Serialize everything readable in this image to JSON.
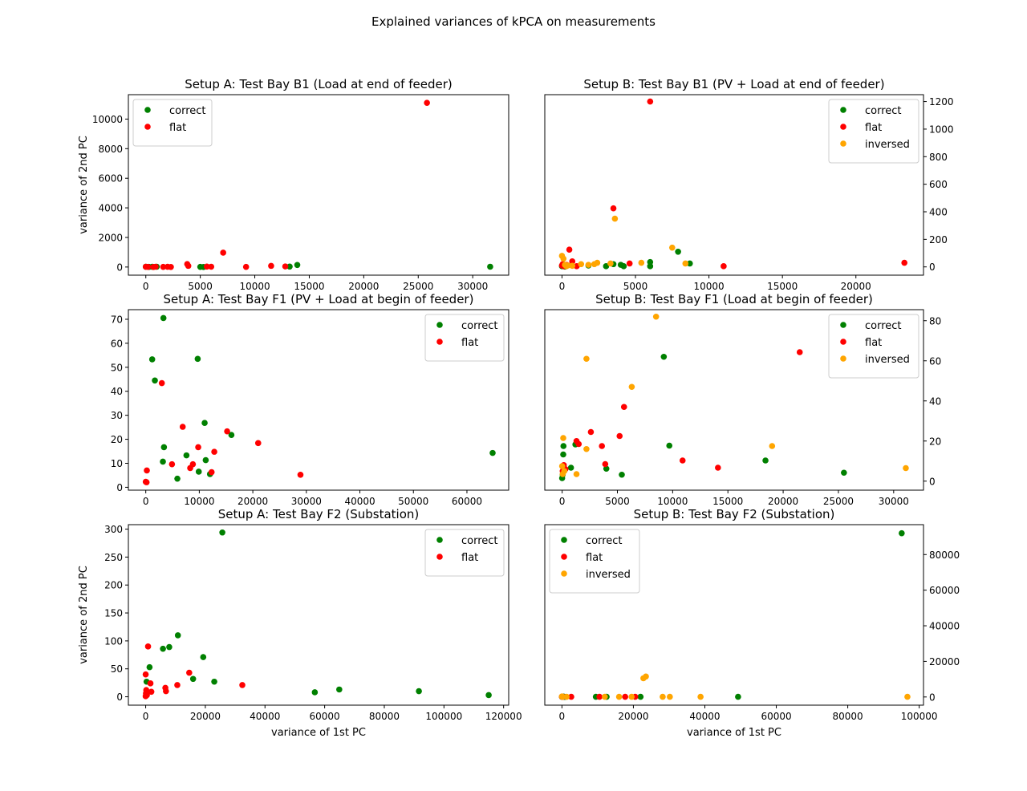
{
  "figure": {
    "title": "Explained variances of kPCA on measurements"
  },
  "colors": {
    "correct": "#008000",
    "flat": "#ff0000",
    "inversed": "#ffa500"
  },
  "chart_data": [
    {
      "type": "scatter",
      "title": "Setup A: Test Bay B1 (Load at end of feeder)",
      "xlabel": "",
      "ylabel": "variance of 2nd PC",
      "xlim": [
        -1600,
        33300
      ],
      "ylim": [
        -550,
        11650
      ],
      "xticks": [
        0,
        5000,
        10000,
        15000,
        20000,
        25000,
        30000
      ],
      "yticks": [
        0,
        2000,
        4000,
        6000,
        8000,
        10000
      ],
      "yaxis_side": "left",
      "legend": "upper-left",
      "grid": false,
      "series": [
        {
          "name": "correct",
          "points": [
            [
              0,
              20
            ],
            [
              300,
              10
            ],
            [
              600,
              15
            ],
            [
              1000,
              20
            ],
            [
              5000,
              10
            ],
            [
              5300,
              5
            ],
            [
              13200,
              30
            ],
            [
              13900,
              140
            ],
            [
              31600,
              20
            ]
          ]
        },
        {
          "name": "flat",
          "points": [
            [
              0,
              15
            ],
            [
              200,
              10
            ],
            [
              700,
              5
            ],
            [
              900,
              20
            ],
            [
              1600,
              10
            ],
            [
              2000,
              15
            ],
            [
              2300,
              5
            ],
            [
              3800,
              200
            ],
            [
              3900,
              80
            ],
            [
              5600,
              30
            ],
            [
              6000,
              20
            ],
            [
              7100,
              970
            ],
            [
              9200,
              10
            ],
            [
              11500,
              80
            ],
            [
              12800,
              40
            ],
            [
              25800,
              11100
            ]
          ]
        }
      ]
    },
    {
      "type": "scatter",
      "title": "Setup B: Test Bay B1 (PV + Load at end of feeder)",
      "xlabel": "",
      "ylabel": "",
      "xlim": [
        -1170,
        24600
      ],
      "ylim": [
        -60,
        1250
      ],
      "xticks": [
        0,
        5000,
        10000,
        15000,
        20000
      ],
      "yticks": [
        0,
        200,
        400,
        600,
        800,
        1000,
        1200
      ],
      "yaxis_side": "right",
      "legend": "upper-right",
      "grid": false,
      "series": [
        {
          "name": "correct",
          "points": [
            [
              0,
              5
            ],
            [
              100,
              10
            ],
            [
              200,
              2
            ],
            [
              300,
              8
            ],
            [
              1800,
              10
            ],
            [
              3000,
              5
            ],
            [
              3500,
              20
            ],
            [
              4000,
              15
            ],
            [
              4200,
              5
            ],
            [
              6000,
              35
            ],
            [
              6000,
              5
            ],
            [
              7900,
              110
            ],
            [
              8700,
              25
            ]
          ]
        },
        {
          "name": "flat",
          "points": [
            [
              0,
              10
            ],
            [
              50,
              20
            ],
            [
              150,
              5
            ],
            [
              300,
              15
            ],
            [
              500,
              125
            ],
            [
              700,
              40
            ],
            [
              1000,
              5
            ],
            [
              3500,
              425
            ],
            [
              4600,
              25
            ],
            [
              6000,
              1200
            ],
            [
              11000,
              5
            ],
            [
              23300,
              30
            ]
          ]
        },
        {
          "name": "inversed",
          "points": [
            [
              0,
              80
            ],
            [
              100,
              60
            ],
            [
              200,
              15
            ],
            [
              300,
              5
            ],
            [
              400,
              10
            ],
            [
              700,
              8
            ],
            [
              1300,
              20
            ],
            [
              1800,
              15
            ],
            [
              2200,
              20
            ],
            [
              2400,
              30
            ],
            [
              3300,
              25
            ],
            [
              3600,
              350
            ],
            [
              5400,
              30
            ],
            [
              7500,
              140
            ],
            [
              8400,
              25
            ]
          ]
        }
      ]
    },
    {
      "type": "scatter",
      "title": "Setup A: Test Bay F1 (PV + Load at begin of feeder)",
      "xlabel": "",
      "ylabel": "",
      "xlim": [
        -3250,
        67800
      ],
      "ylim": [
        -1.2,
        74
      ],
      "xticks": [
        0,
        10000,
        20000,
        30000,
        40000,
        50000,
        60000
      ],
      "yticks": [
        0,
        10,
        20,
        30,
        40,
        50,
        60,
        70
      ],
      "yaxis_side": "left",
      "legend": "upper-right",
      "grid": false,
      "series": [
        {
          "name": "correct",
          "points": [
            [
              3300,
              70.5
            ],
            [
              1200,
              53.3
            ],
            [
              1700,
              44.5
            ],
            [
              9700,
              53.5
            ],
            [
              3400,
              16.7
            ],
            [
              3200,
              10.7
            ],
            [
              7600,
              13.3
            ],
            [
              5900,
              3.6
            ],
            [
              9900,
              6.5
            ],
            [
              11000,
              26.8
            ],
            [
              11200,
              11.3
            ],
            [
              16000,
              21.8
            ],
            [
              12000,
              5.5
            ],
            [
              64800,
              14.3
            ]
          ]
        },
        {
          "name": "flat",
          "points": [
            [
              0,
              2.3
            ],
            [
              150,
              2.1
            ],
            [
              200,
              7
            ],
            [
              3000,
              43.4
            ],
            [
              4900,
              9.6
            ],
            [
              6900,
              25.2
            ],
            [
              8300,
              8
            ],
            [
              8800,
              9.6
            ],
            [
              9800,
              16.7
            ],
            [
              12300,
              6.3
            ],
            [
              12800,
              14.8
            ],
            [
              15200,
              23.3
            ],
            [
              21000,
              18.4
            ],
            [
              28900,
              5.2
            ]
          ]
        }
      ]
    },
    {
      "type": "scatter",
      "title": "Setup B: Test Bay F1 (Load at begin of feeder)",
      "xlabel": "",
      "ylabel": "",
      "xlim": [
        -1570,
        32700
      ],
      "ylim": [
        -4.5,
        85.5
      ],
      "xticks": [
        0,
        5000,
        10000,
        15000,
        20000,
        25000,
        30000
      ],
      "yticks": [
        0,
        20,
        40,
        60,
        80
      ],
      "yaxis_side": "right",
      "legend": "upper-right",
      "grid": false,
      "series": [
        {
          "name": "correct",
          "points": [
            [
              0,
              1.5
            ],
            [
              50,
              3.2
            ],
            [
              80,
              4.5
            ],
            [
              100,
              13.3
            ],
            [
              120,
              17.5
            ],
            [
              800,
              6.7
            ],
            [
              1200,
              18.3
            ],
            [
              4000,
              6.2
            ],
            [
              5400,
              3.2
            ],
            [
              9200,
              62
            ],
            [
              9700,
              17.7
            ],
            [
              18400,
              10.3
            ],
            [
              25500,
              4.2
            ]
          ]
        },
        {
          "name": "flat",
          "points": [
            [
              50,
              5
            ],
            [
              150,
              8
            ],
            [
              300,
              6
            ],
            [
              1300,
              20
            ],
            [
              1500,
              18.5
            ],
            [
              2600,
              24.5
            ],
            [
              3600,
              17.5
            ],
            [
              3900,
              8.5
            ],
            [
              5200,
              22.5
            ],
            [
              5600,
              37
            ],
            [
              10900,
              10.3
            ],
            [
              14100,
              6.7
            ],
            [
              21500,
              64.3
            ]
          ]
        },
        {
          "name": "inversed",
          "points": [
            [
              0,
              7.5
            ],
            [
              50,
              3.5
            ],
            [
              100,
              21.5
            ],
            [
              200,
              5
            ],
            [
              1300,
              3.5
            ],
            [
              2200,
              16
            ],
            [
              2200,
              61
            ],
            [
              6300,
              47
            ],
            [
              8500,
              82
            ],
            [
              19000,
              17.5
            ],
            [
              31100,
              6.5
            ]
          ]
        }
      ]
    },
    {
      "type": "scatter",
      "title": "Setup A: Test Bay F2 (Substation)",
      "xlabel": "variance of 1st PC",
      "ylabel": "variance of 2nd PC",
      "xlim": [
        -5800,
        121700
      ],
      "ylim": [
        -15,
        308
      ],
      "xticks": [
        0,
        20000,
        40000,
        60000,
        80000,
        100000,
        120000
      ],
      "yticks": [
        0,
        50,
        100,
        150,
        200,
        250,
        300
      ],
      "yaxis_side": "left",
      "legend": "upper-right",
      "grid": false,
      "series": [
        {
          "name": "correct",
          "points": [
            [
              25700,
              294
            ],
            [
              10800,
              110
            ],
            [
              7900,
              89
            ],
            [
              5800,
              86
            ],
            [
              19300,
              71
            ],
            [
              1300,
              53
            ],
            [
              15900,
              32
            ],
            [
              23000,
              27
            ],
            [
              300,
              27
            ],
            [
              56700,
              8
            ],
            [
              64900,
              13
            ],
            [
              91600,
              10
            ],
            [
              115000,
              3
            ]
          ]
        },
        {
          "name": "flat",
          "points": [
            [
              800,
              90
            ],
            [
              0,
              40
            ],
            [
              1600,
              24
            ],
            [
              14600,
              43
            ],
            [
              32400,
              21
            ],
            [
              10600,
              21
            ],
            [
              6600,
              16
            ],
            [
              6800,
              10
            ],
            [
              1900,
              9
            ],
            [
              200,
              12
            ],
            [
              100,
              6
            ],
            [
              0,
              1
            ],
            [
              400,
              3
            ]
          ]
        }
      ]
    },
    {
      "type": "scatter",
      "title": "Setup B: Test Bay F2 (Substation)",
      "xlabel": "variance of 1st PC",
      "ylabel": "",
      "xlim": [
        -4800,
        101200
      ],
      "ylim": [
        -4600,
        96800
      ],
      "xticks": [
        0,
        20000,
        40000,
        60000,
        80000,
        100000
      ],
      "yticks": [
        0,
        20000,
        40000,
        60000,
        80000
      ],
      "yaxis_side": "right",
      "legend": "upper-left",
      "grid": false,
      "series": [
        {
          "name": "correct",
          "points": [
            [
              0,
              100
            ],
            [
              400,
              200
            ],
            [
              800,
              50
            ],
            [
              9500,
              100
            ],
            [
              12500,
              100
            ],
            [
              22000,
              100
            ],
            [
              49300,
              100
            ],
            [
              95100,
              92000
            ]
          ]
        },
        {
          "name": "flat",
          "points": [
            [
              0,
              150
            ],
            [
              300,
              100
            ],
            [
              2600,
              100
            ],
            [
              10500,
              100
            ],
            [
              17700,
              100
            ],
            [
              20500,
              100
            ]
          ]
        },
        {
          "name": "inversed",
          "points": [
            [
              0,
              300
            ],
            [
              200,
              100
            ],
            [
              1300,
              100
            ],
            [
              12000,
              100
            ],
            [
              16000,
              100
            ],
            [
              19500,
              100
            ],
            [
              22800,
              10500
            ],
            [
              23500,
              11500
            ],
            [
              28200,
              100
            ],
            [
              30200,
              100
            ],
            [
              38800,
              100
            ],
            [
              96700,
              100
            ]
          ]
        }
      ]
    }
  ]
}
